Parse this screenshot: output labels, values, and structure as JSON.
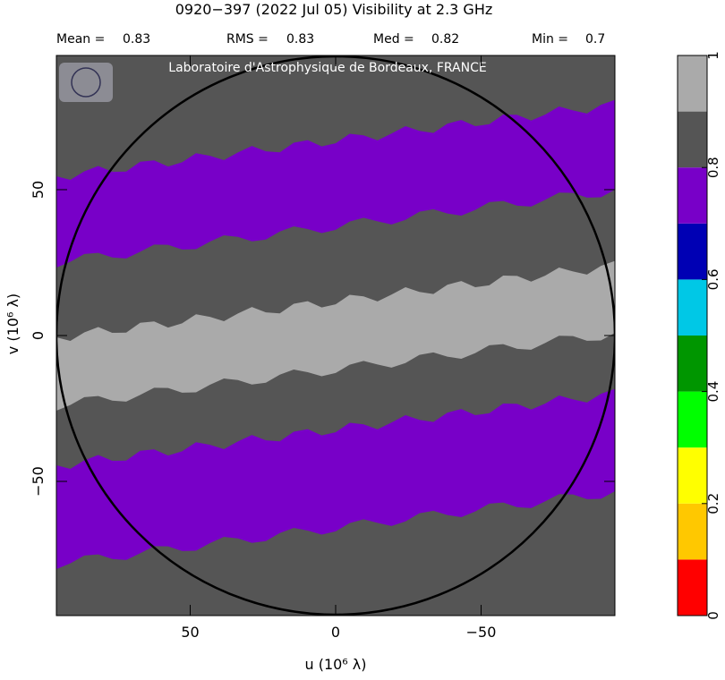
{
  "chart_data": {
    "type": "uv-map",
    "title": "0920−397  (2022 Jul 05)   Visibility at  2.3 GHz",
    "stats": [
      {
        "label": "Mean =",
        "value": 0.83
      },
      {
        "label": "RMS =",
        "value": 0.83
      },
      {
        "label": "Med =",
        "value": 0.82
      },
      {
        "label": "Min =",
        "value": 0.7
      }
    ],
    "watermark": "Laboratoire d'Astrophysique de Bordeaux, FRANCE",
    "x_label": "u  (10⁶ λ)",
    "y_label": "v  (10⁶ λ)",
    "xlim": [
      96,
      -96
    ],
    "ylim": [
      -96,
      96
    ],
    "xticks": [
      50,
      0,
      {
        "value": -50,
        "label": "−50"
      }
    ],
    "yticks": [
      {
        "value": -50,
        "label": "−50"
      },
      0,
      50
    ],
    "colorbar": {
      "lim": [
        0,
        1
      ],
      "bounds": [
        0,
        0.1,
        0.2,
        0.3,
        0.4,
        0.5,
        0.6,
        0.7,
        0.8,
        0.9,
        1
      ],
      "colors": [
        "#ff0000",
        "#ffc800",
        "#ffff00",
        "#00ff00",
        "#009600",
        "#00c8e6",
        "#0000b4",
        "#7800c8",
        "#555555",
        "#aaaaaa"
      ],
      "ticks": [
        0,
        0.2,
        0.4,
        0.6,
        0.8,
        1
      ]
    }
  }
}
